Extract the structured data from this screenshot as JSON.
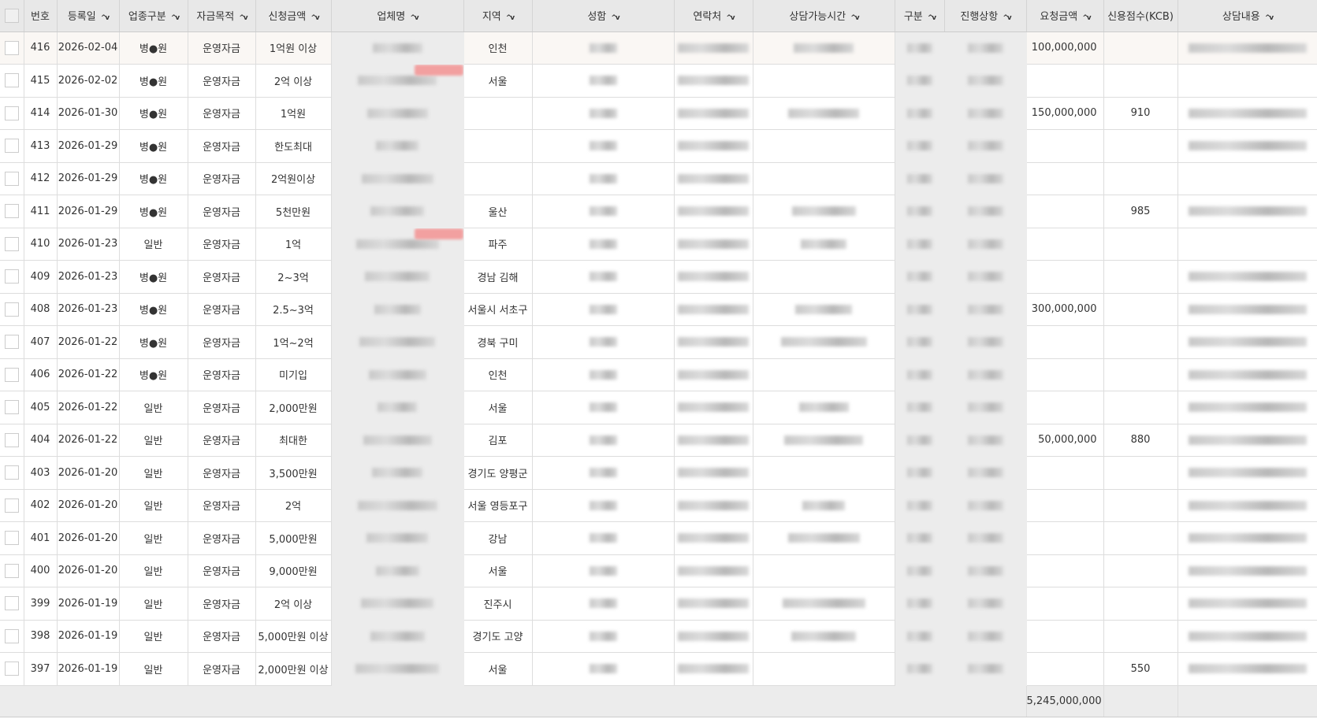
{
  "columns": [
    {
      "label": "",
      "sort": false
    },
    {
      "label": "번호",
      "sort": false
    },
    {
      "label": "등록일",
      "sort": true
    },
    {
      "label": "업종구분",
      "sort": true
    },
    {
      "label": "자금목적",
      "sort": true
    },
    {
      "label": "신청금액",
      "sort": true
    },
    {
      "label": "업체명",
      "sort": true
    },
    {
      "label": "지역",
      "sort": true
    },
    {
      "label": "성함",
      "sort": true
    },
    {
      "label": "연락처",
      "sort": true
    },
    {
      "label": "상담가능시간",
      "sort": true
    },
    {
      "label": "구분",
      "sort": true
    },
    {
      "label": "진행상항",
      "sort": true
    },
    {
      "label": "요청금액",
      "sort": true
    },
    {
      "label": "신용점수(KCB)",
      "sort": false
    },
    {
      "label": "상담내용",
      "sort": true
    }
  ],
  "rows": [
    {
      "no": "416",
      "date": "2026-02-04",
      "type": "병●원",
      "purpose": "운영자금",
      "amount": "1억원 이상",
      "region": "인천",
      "request": "100,000,000",
      "credit": ""
    },
    {
      "no": "415",
      "date": "2026-02-02",
      "type": "병●원",
      "purpose": "운영자금",
      "amount": "2억 이상",
      "region": "서울",
      "request": "",
      "credit": ""
    },
    {
      "no": "414",
      "date": "2026-01-30",
      "type": "병●원",
      "purpose": "운영자금",
      "amount": "1억원",
      "region": "",
      "request": "150,000,000",
      "credit": "910"
    },
    {
      "no": "413",
      "date": "2026-01-29",
      "type": "병●원",
      "purpose": "운영자금",
      "amount": "한도최대",
      "region": "",
      "request": "",
      "credit": ""
    },
    {
      "no": "412",
      "date": "2026-01-29",
      "type": "병●원",
      "purpose": "운영자금",
      "amount": "2억원이상",
      "region": "",
      "request": "",
      "credit": ""
    },
    {
      "no": "411",
      "date": "2026-01-29",
      "type": "병●원",
      "purpose": "운영자금",
      "amount": "5천만원",
      "region": "울산",
      "request": "",
      "credit": "985"
    },
    {
      "no": "410",
      "date": "2026-01-23",
      "type": "일반",
      "purpose": "운영자금",
      "amount": "1억",
      "region": "파주",
      "request": "",
      "credit": ""
    },
    {
      "no": "409",
      "date": "2026-01-23",
      "type": "병●원",
      "purpose": "운영자금",
      "amount": "2~3억",
      "region": "경남 김해",
      "request": "",
      "credit": ""
    },
    {
      "no": "408",
      "date": "2026-01-23",
      "type": "병●원",
      "purpose": "운영자금",
      "amount": "2.5~3억",
      "region": "서울시 서초구",
      "request": "300,000,000",
      "credit": ""
    },
    {
      "no": "407",
      "date": "2026-01-22",
      "type": "병●원",
      "purpose": "운영자금",
      "amount": "1억~2억",
      "region": "경북 구미",
      "request": "",
      "credit": ""
    },
    {
      "no": "406",
      "date": "2026-01-22",
      "type": "병●원",
      "purpose": "운영자금",
      "amount": "미기입",
      "region": "인천",
      "request": "",
      "credit": ""
    },
    {
      "no": "405",
      "date": "2026-01-22",
      "type": "일반",
      "purpose": "운영자금",
      "amount": "2,000만원",
      "region": "서울",
      "request": "",
      "credit": ""
    },
    {
      "no": "404",
      "date": "2026-01-22",
      "type": "일반",
      "purpose": "운영자금",
      "amount": "최대한",
      "region": "김포",
      "request": "50,000,000",
      "credit": "880"
    },
    {
      "no": "403",
      "date": "2026-01-20",
      "type": "일반",
      "purpose": "운영자금",
      "amount": "3,500만원",
      "region": "경기도 양평군",
      "request": "",
      "credit": ""
    },
    {
      "no": "402",
      "date": "2026-01-20",
      "type": "일반",
      "purpose": "운영자금",
      "amount": "2억",
      "region": "서울 영등포구",
      "request": "",
      "credit": ""
    },
    {
      "no": "401",
      "date": "2026-01-20",
      "type": "일반",
      "purpose": "운영자금",
      "amount": "5,000만원",
      "region": "강남",
      "request": "",
      "credit": ""
    },
    {
      "no": "400",
      "date": "2026-01-20",
      "type": "일반",
      "purpose": "운영자금",
      "amount": "9,000만원",
      "region": "서울",
      "request": "",
      "credit": ""
    },
    {
      "no": "399",
      "date": "2026-01-19",
      "type": "일반",
      "purpose": "운영자금",
      "amount": "2억 이상",
      "region": "진주시",
      "request": "",
      "credit": ""
    },
    {
      "no": "398",
      "date": "2026-01-19",
      "type": "일반",
      "purpose": "운영자금",
      "amount": "5,000만원 이상",
      "region": "경기도 고양",
      "request": "",
      "credit": ""
    },
    {
      "no": "397",
      "date": "2026-01-19",
      "type": "일반",
      "purpose": "운영자금",
      "amount": "2,000만원 이상",
      "region": "서울",
      "request": "",
      "credit": "550"
    }
  ],
  "footer": {
    "request_total": "5,245,000,000"
  },
  "sort_icon": "chevron-up-down-icon"
}
